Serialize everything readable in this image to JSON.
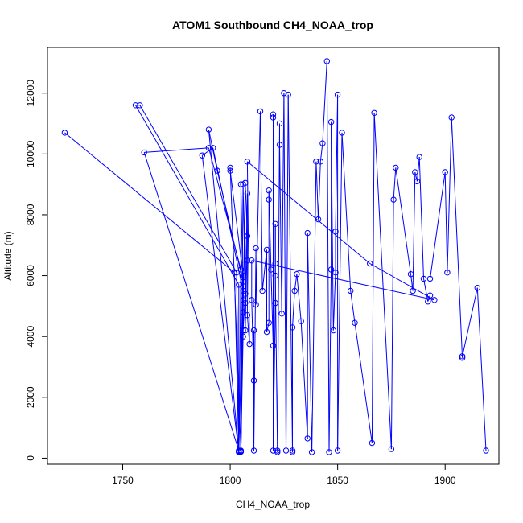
{
  "chart_data": {
    "type": "line",
    "title": "ATOM1 Southbound CH4_NOAA_trop",
    "xlabel": "CH4_NOAA_trop",
    "ylabel": "Altitude (m)",
    "xlim": [
      1715,
      1925
    ],
    "ylim": [
      -200,
      13500
    ],
    "x_ticks": [
      1750,
      1800,
      1850,
      1900
    ],
    "y_ticks": [
      0,
      2000,
      4000,
      6000,
      8000,
      10000,
      12000
    ],
    "grid": false,
    "legend": "none",
    "series_color": "#0000ff",
    "marker": "open-circle",
    "points": [
      [
        1723,
        10700
      ],
      [
        1802,
        6100
      ],
      [
        1804,
        200
      ],
      [
        1804,
        5700
      ],
      [
        1756,
        11600
      ],
      [
        1758,
        11600
      ],
      [
        1803,
        6100
      ],
      [
        1804,
        250
      ],
      [
        1760,
        10050
      ],
      [
        1790,
        10200
      ],
      [
        1805,
        6200
      ],
      [
        1804,
        220
      ],
      [
        1787,
        9950
      ],
      [
        1792,
        10200
      ],
      [
        1806,
        5500
      ],
      [
        1804,
        230
      ],
      [
        1790,
        10800
      ],
      [
        1794,
        9450
      ],
      [
        1806,
        5800
      ],
      [
        1805,
        250
      ],
      [
        1800,
        9550
      ],
      [
        1800,
        9450
      ],
      [
        1806,
        6000
      ],
      [
        1805,
        210
      ],
      [
        1805,
        9000
      ],
      [
        1806,
        5200
      ],
      [
        1806,
        4000
      ],
      [
        1805,
        230
      ],
      [
        1806,
        9000
      ],
      [
        1807,
        5400
      ],
      [
        1806,
        4200
      ],
      [
        1806,
        4800
      ],
      [
        1807,
        9050
      ],
      [
        1808,
        7300
      ],
      [
        1807,
        4200
      ],
      [
        1807,
        5100
      ],
      [
        1808,
        8700
      ],
      [
        1808,
        6500
      ],
      [
        1808,
        4700
      ],
      [
        1809,
        3750
      ],
      [
        1808,
        9750
      ],
      [
        1865,
        6400
      ],
      [
        1895,
        5200
      ],
      [
        1810,
        6500
      ],
      [
        1810,
        5200
      ],
      [
        1811,
        2550
      ],
      [
        1811,
        4200
      ],
      [
        1811,
        250
      ],
      [
        1812,
        6900
      ],
      [
        1812,
        5050
      ],
      [
        1814,
        11400
      ],
      [
        1815,
        5500
      ],
      [
        1817,
        6850
      ],
      [
        1817,
        4150
      ],
      [
        1818,
        4450
      ],
      [
        1818,
        8500
      ],
      [
        1818,
        8800
      ],
      [
        1819,
        6200
      ],
      [
        1820,
        3700
      ],
      [
        1820,
        11300
      ],
      [
        1820,
        11200
      ],
      [
        1820,
        250
      ],
      [
        1821,
        5100
      ],
      [
        1821,
        6400
      ],
      [
        1821,
        7700
      ],
      [
        1821,
        6000
      ],
      [
        1822,
        250
      ],
      [
        1822,
        200
      ],
      [
        1823,
        11000
      ],
      [
        1823,
        10300
      ],
      [
        1824,
        4750
      ],
      [
        1825,
        12000
      ],
      [
        1826,
        250
      ],
      [
        1827,
        11950
      ],
      [
        1829,
        250
      ],
      [
        1829,
        200
      ],
      [
        1829,
        4300
      ],
      [
        1830,
        5500
      ],
      [
        1831,
        6050
      ],
      [
        1833,
        4500
      ],
      [
        1836,
        650
      ],
      [
        1836,
        7400
      ],
      [
        1838,
        200
      ],
      [
        1840,
        9750
      ],
      [
        1841,
        7850
      ],
      [
        1842,
        9750
      ],
      [
        1843,
        10350
      ],
      [
        1845,
        13050
      ],
      [
        1846,
        200
      ],
      [
        1847,
        6200
      ],
      [
        1847,
        11050
      ],
      [
        1848,
        4200
      ],
      [
        1849,
        6100
      ],
      [
        1849,
        7450
      ],
      [
        1850,
        11950
      ],
      [
        1850,
        250
      ],
      [
        1852,
        10700
      ],
      [
        1856,
        5500
      ],
      [
        1858,
        4450
      ],
      [
        1866,
        500
      ],
      [
        1867,
        11350
      ],
      [
        1875,
        300
      ],
      [
        1876,
        8500
      ],
      [
        1877,
        9550
      ],
      [
        1884,
        6050
      ],
      [
        1885,
        5500
      ],
      [
        1886,
        9400
      ],
      [
        1887,
        9100
      ],
      [
        1888,
        9900
      ],
      [
        1890,
        5900
      ],
      [
        1892,
        5150
      ],
      [
        1893,
        5350
      ],
      [
        1893,
        5900
      ],
      [
        1900,
        9400
      ],
      [
        1901,
        6100
      ],
      [
        1903,
        11200
      ],
      [
        1908,
        3300
      ],
      [
        1908,
        3350
      ],
      [
        1915,
        5600
      ],
      [
        1919,
        250
      ]
    ]
  }
}
